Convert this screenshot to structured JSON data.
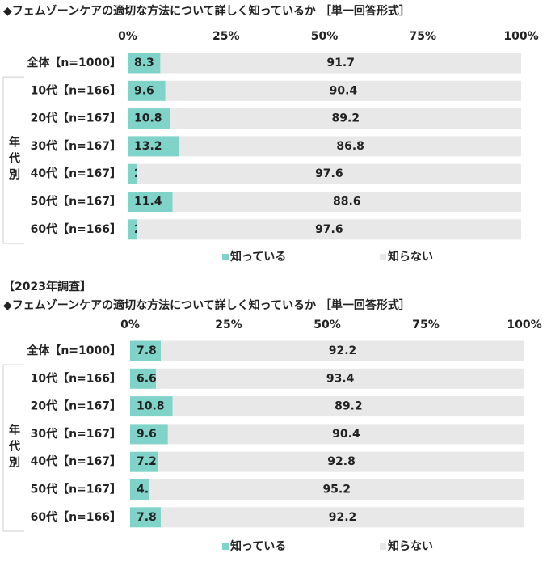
{
  "chart_data": [
    {
      "type": "stacked-bar-horizontal",
      "title": "◆フェムゾーンケアの適切な方法について詳しく知っているか ［単一回答形式］",
      "group_label": "年代別",
      "categories": [
        "全体【n=1000】",
        "10代【n=166】",
        "20代【n=167】",
        "30代【n=167】",
        "40代【n=167】",
        "50代【n=167】",
        "60代【n=166】"
      ],
      "series": [
        {
          "name": "知っている",
          "color": "#7fd3c8",
          "values": [
            8.3,
            9.6,
            10.8,
            13.2,
            2.4,
            11.4,
            2.4
          ]
        },
        {
          "name": "知らない",
          "color": "#e8e8e8",
          "values": [
            91.7,
            90.4,
            89.2,
            86.8,
            97.6,
            88.6,
            97.6
          ]
        }
      ],
      "xlim": [
        0,
        100
      ],
      "xticks": [
        {
          "value": 0,
          "label": "0%"
        },
        {
          "value": 25,
          "label": "25%"
        },
        {
          "value": 50,
          "label": "50%"
        },
        {
          "value": 75,
          "label": "75%"
        },
        {
          "value": 100,
          "label": "100%"
        }
      ],
      "legend": "bottom"
    },
    {
      "type": "stacked-bar-horizontal",
      "subtitle": "【2023年調査】",
      "title": "◆フェムゾーンケアの適切な方法について詳しく知っているか ［単一回答形式］",
      "group_label": "年代別",
      "categories": [
        "全体【n=1000】",
        "10代【n=166】",
        "20代【n=167】",
        "30代【n=167】",
        "40代【n=167】",
        "50代【n=167】",
        "60代【n=166】"
      ],
      "series": [
        {
          "name": "知っている",
          "color": "#7fd3c8",
          "values": [
            7.8,
            6.6,
            10.8,
            9.6,
            7.2,
            4.8,
            7.8
          ]
        },
        {
          "name": "知らない",
          "color": "#e8e8e8",
          "values": [
            92.2,
            93.4,
            89.2,
            90.4,
            92.8,
            95.2,
            92.2
          ]
        }
      ],
      "xlim": [
        0,
        100
      ],
      "xticks": [
        {
          "value": 0,
          "label": "0%"
        },
        {
          "value": 25,
          "label": "25%"
        },
        {
          "value": 50,
          "label": "50%"
        },
        {
          "value": 75,
          "label": "75%"
        },
        {
          "value": 100,
          "label": "100%"
        }
      ],
      "legend": "bottom"
    }
  ]
}
